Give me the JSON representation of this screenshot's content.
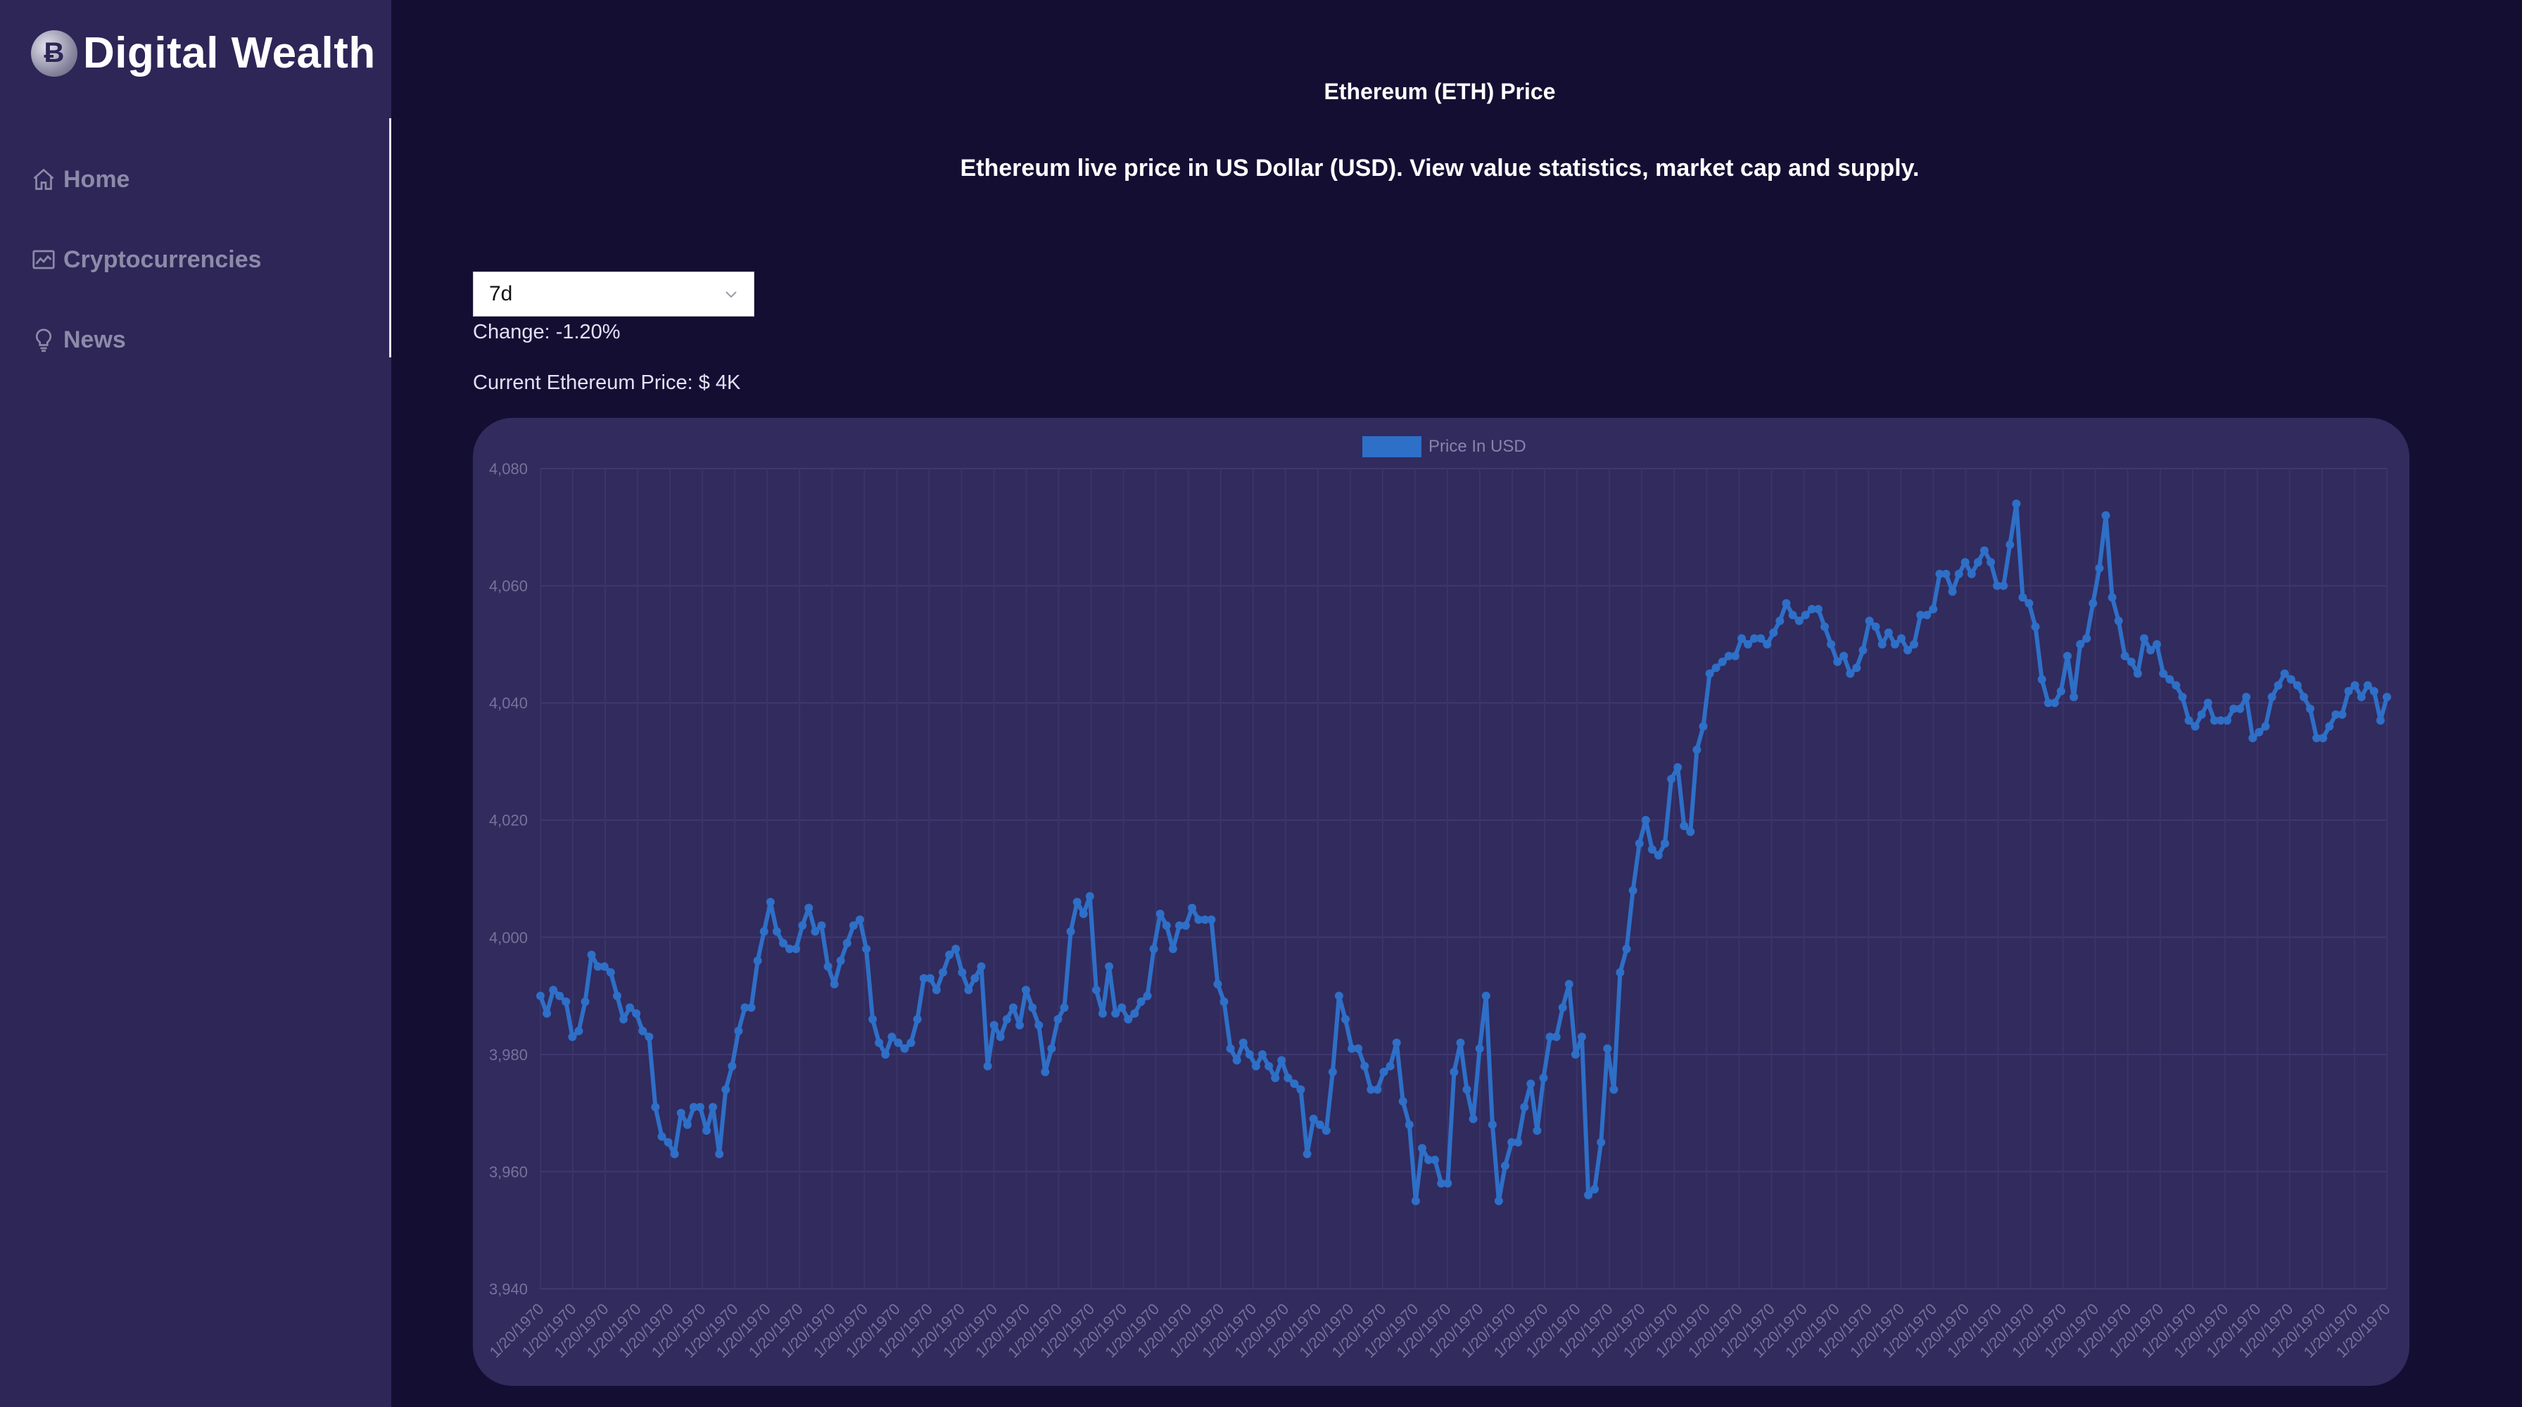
{
  "brand": {
    "name": "Digital Wealth",
    "logo_glyph": "Ƀ"
  },
  "sidebar": {
    "items": [
      {
        "label": "Home",
        "icon": "home-icon"
      },
      {
        "label": "Cryptocurrencies",
        "icon": "chart-icon"
      },
      {
        "label": "News",
        "icon": "bulb-icon"
      }
    ]
  },
  "header": {
    "title": "Ethereum (ETH) Price",
    "subtitle": "Ethereum live price in US Dollar (USD). View value statistics, market cap and supply."
  },
  "controls": {
    "period_selected": "7d",
    "change_text": "Change: -1.20%",
    "current_price_text": "Current Ethereum Price: $ 4K"
  },
  "colors": {
    "background": "#140f32",
    "sidebar": "#2d2657",
    "card": "#312b5e",
    "line": "#2e6fc7",
    "muted_text": "#8a84aa"
  },
  "chart_data": {
    "type": "line",
    "series": [
      {
        "name": "Price In USD",
        "values": [
          3990,
          3987,
          3991,
          3990,
          3989,
          3983,
          3984,
          3989,
          3997,
          3995,
          3995,
          3994,
          3990,
          3986,
          3988,
          3987,
          3984,
          3983,
          3971,
          3966,
          3965,
          3963,
          3970,
          3968,
          3971,
          3971,
          3967,
          3971,
          3963,
          3974,
          3978,
          3984,
          3988,
          3988,
          3996,
          4001,
          4006,
          4001,
          3999,
          3998,
          3998,
          4002,
          4005,
          4001,
          4002,
          3995,
          3992,
          3996,
          3999,
          4002,
          4003,
          3998,
          3986,
          3982,
          3980,
          3983,
          3982,
          3981,
          3982,
          3986,
          3993,
          3993,
          3991,
          3994,
          3997,
          3998,
          3994,
          3991,
          3993,
          3995,
          3978,
          3985,
          3983,
          3986,
          3988,
          3985,
          3991,
          3988,
          3985,
          3977,
          3981,
          3986,
          3988,
          4001,
          4006,
          4004,
          4007,
          3991,
          3987,
          3995,
          3987,
          3988,
          3986,
          3987,
          3989,
          3990,
          3998,
          4004,
          4002,
          3998,
          4002,
          4002,
          4005,
          4003,
          4003,
          4003,
          3992,
          3989,
          3981,
          3979,
          3982,
          3980,
          3978,
          3980,
          3978,
          3976,
          3979,
          3976,
          3975,
          3974,
          3963,
          3969,
          3968,
          3967,
          3977,
          3990,
          3986,
          3981,
          3981,
          3978,
          3974,
          3974,
          3977,
          3978,
          3982,
          3972,
          3968,
          3955,
          3964,
          3962,
          3962,
          3958,
          3958,
          3977,
          3982,
          3974,
          3969,
          3981,
          3990,
          3968,
          3955,
          3961,
          3965,
          3965,
          3971,
          3975,
          3967,
          3976,
          3983,
          3983,
          3988,
          3992,
          3980,
          3983,
          3956,
          3957,
          3965,
          3981,
          3974,
          3994,
          3998,
          4008,
          4016,
          4020,
          4015,
          4014,
          4016,
          4027,
          4029,
          4019,
          4018,
          4032,
          4036,
          4045,
          4046,
          4047,
          4048,
          4048,
          4051,
          4050,
          4051,
          4051,
          4050,
          4052,
          4054,
          4057,
          4055,
          4054,
          4055,
          4056,
          4056,
          4053,
          4050,
          4047,
          4048,
          4045,
          4046,
          4049,
          4054,
          4053,
          4050,
          4052,
          4050,
          4051,
          4049,
          4050,
          4055,
          4055,
          4056,
          4062,
          4062,
          4059,
          4062,
          4064,
          4062,
          4064,
          4066,
          4064,
          4060,
          4060,
          4067,
          4074,
          4058,
          4057,
          4053,
          4044,
          4040,
          4040,
          4042,
          4048,
          4041,
          4050,
          4051,
          4057,
          4063,
          4072,
          4058,
          4054,
          4048,
          4047,
          4045,
          4051,
          4049,
          4050,
          4045,
          4044,
          4043,
          4041,
          4037,
          4036,
          4038,
          4040,
          4037,
          4037,
          4037,
          4039,
          4039,
          4041,
          4034,
          4035,
          4036,
          4041,
          4043,
          4045,
          4044,
          4043,
          4041,
          4039,
          4034,
          4034,
          4036,
          4038,
          4038,
          4042,
          4043,
          4041,
          4043,
          4042,
          4037,
          4041
        ]
      }
    ],
    "legend": [
      "Price In USD"
    ],
    "legend_position": "top-center",
    "ylim": [
      3940,
      4080
    ],
    "yticks": [
      "4,080",
      "4,060",
      "4,040",
      "4,020",
      "4,000",
      "3,980",
      "3,960",
      "3,940"
    ],
    "ytick_values": [
      4080,
      4060,
      4040,
      4020,
      4000,
      3980,
      3960,
      3940
    ],
    "xtick_label": "1/20/1970",
    "xtick_count": 58,
    "grid": true
  }
}
